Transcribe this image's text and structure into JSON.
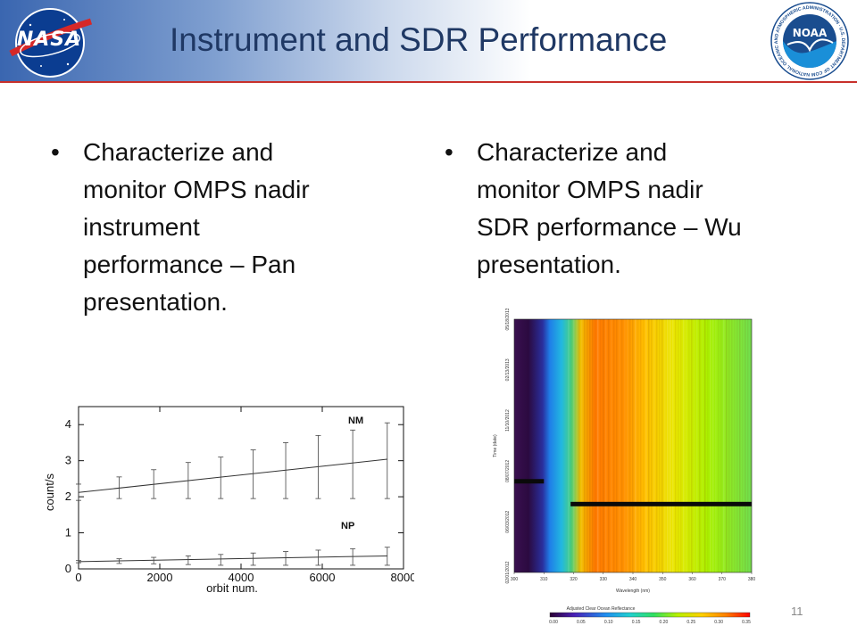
{
  "header": {
    "title": "Instrument and SDR Performance",
    "nasa_logo_text": "NASA",
    "noaa_logo_text": "NOAA",
    "noaa_ring_text": "NATIONAL OCEANIC AND ATMOSPHERIC ADMINISTRATION · U.S. DEPARTMENT OF COMMERCE",
    "accent_color": "#c8302b",
    "title_color": "#1f3864"
  },
  "bullets": [
    {
      "glyph": "•",
      "text": "Characterize and\nmonitor  OMPS nadir\ninstrument\nperformance – Pan\npresentation."
    },
    {
      "glyph": "•",
      "text": "Characterize and\nmonitor  OMPS nadir\nSDR performance – Wu\npresentation."
    }
  ],
  "page_number": "11",
  "chart_data": [
    {
      "type": "line",
      "ylabel": "count/s",
      "xlabel": "orbit num.",
      "xlim": [
        0,
        8000
      ],
      "ylim": [
        0,
        4.5
      ],
      "xticks": [
        0,
        2000,
        4000,
        6000,
        8000
      ],
      "yticks": [
        0,
        1,
        2,
        3,
        4
      ],
      "series": [
        {
          "name": "NM",
          "line": [
            [
              0,
              2.12
            ],
            [
              7600,
              3.04
            ]
          ],
          "points": [
            {
              "x": 0,
              "y": 2.12,
              "lo": 1.9,
              "hi": 2.35
            },
            {
              "x": 1000,
              "y": 2.25,
              "lo": 1.95,
              "hi": 2.55
            },
            {
              "x": 1850,
              "y": 2.35,
              "lo": 1.95,
              "hi": 2.75
            },
            {
              "x": 2700,
              "y": 2.47,
              "lo": 1.95,
              "hi": 2.95
            },
            {
              "x": 3500,
              "y": 2.55,
              "lo": 1.95,
              "hi": 3.1
            },
            {
              "x": 4300,
              "y": 2.65,
              "lo": 1.95,
              "hi": 3.3
            },
            {
              "x": 5100,
              "y": 2.73,
              "lo": 1.95,
              "hi": 3.5
            },
            {
              "x": 5900,
              "y": 2.82,
              "lo": 1.95,
              "hi": 3.7
            },
            {
              "x": 6750,
              "y": 2.93,
              "lo": 1.95,
              "hi": 3.85
            },
            {
              "x": 7600,
              "y": 3.04,
              "lo": 1.95,
              "hi": 4.05
            }
          ]
        },
        {
          "name": "NP",
          "line": [
            [
              0,
              0.2
            ],
            [
              7600,
              0.36
            ]
          ],
          "points": [
            {
              "x": 0,
              "y": 0.2,
              "lo": 0.17,
              "hi": 0.23
            },
            {
              "x": 1000,
              "y": 0.22,
              "lo": 0.15,
              "hi": 0.28
            },
            {
              "x": 1850,
              "y": 0.24,
              "lo": 0.14,
              "hi": 0.32
            },
            {
              "x": 2700,
              "y": 0.25,
              "lo": 0.12,
              "hi": 0.36
            },
            {
              "x": 3500,
              "y": 0.27,
              "lo": 0.1,
              "hi": 0.4
            },
            {
              "x": 4300,
              "y": 0.29,
              "lo": 0.1,
              "hi": 0.44
            },
            {
              "x": 5100,
              "y": 0.3,
              "lo": 0.1,
              "hi": 0.48
            },
            {
              "x": 5900,
              "y": 0.32,
              "lo": 0.1,
              "hi": 0.52
            },
            {
              "x": 6750,
              "y": 0.34,
              "lo": 0.1,
              "hi": 0.56
            },
            {
              "x": 7600,
              "y": 0.36,
              "lo": 0.1,
              "hi": 0.6
            }
          ]
        }
      ]
    },
    {
      "type": "heatmap",
      "xlabel": "Wavelength (nm)",
      "ylabel": "Time (date)",
      "xlim": [
        300,
        380
      ],
      "xticks": [
        300,
        310,
        320,
        330,
        340,
        350,
        360,
        370,
        380
      ],
      "yticklabels": [
        "02/01/2012",
        "06/03/2012",
        "08/07/2012",
        "11/10/2012",
        "02/13/2013",
        "05/18/2013"
      ],
      "colorbar": {
        "title": "Adjusted Clear Ocean Reflectance",
        "ticks": [
          "0.00",
          "0.05",
          "0.10",
          "0.15",
          "0.20",
          "0.25",
          "0.30",
          "0.35"
        ],
        "colors": [
          "#2b0033",
          "#4a1fb5",
          "#1f8ef0",
          "#20d0d0",
          "#30e060",
          "#b8f000",
          "#ffd000",
          "#ff8000",
          "#ff2a00",
          "#ff0000"
        ]
      },
      "missing_rows": [
        {
          "date_fraction": 0.36,
          "wl_start": 300,
          "wl_end": 310
        },
        {
          "date_fraction": 0.27,
          "wl_start": 319,
          "wl_end": 380
        }
      ]
    }
  ]
}
